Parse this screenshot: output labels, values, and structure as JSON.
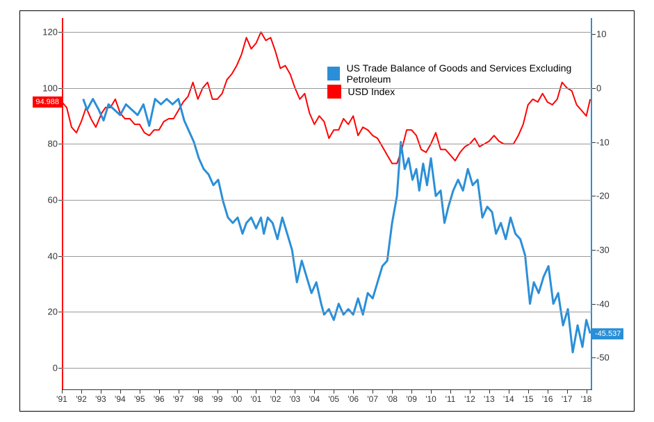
{
  "chart": {
    "type": "line",
    "background_color": "#ffffff",
    "grid_color": "#999999",
    "left_axis_color": "#ff0000",
    "right_axis_color": "#2a8fd8",
    "border_color": "#000000",
    "x": {
      "labels": [
        "'91",
        "'92",
        "'93",
        "'94",
        "'95",
        "'96",
        "'97",
        "'98",
        "'99",
        "'00",
        "'01",
        "'02",
        "'03",
        "'04",
        "'05",
        "'06",
        "'07",
        "'08",
        "'09",
        "'10",
        "'11",
        "'12",
        "'13",
        "'14",
        "'15",
        "'16",
        "'17",
        "'18"
      ],
      "min": 0,
      "max": 27.3
    },
    "y_left": {
      "min": -8,
      "max": 125,
      "ticks": [
        0,
        20,
        40,
        60,
        80,
        100,
        120
      ],
      "fontsize": 13
    },
    "y_right": {
      "min": -56,
      "max": 13,
      "ticks": [
        -50,
        -40,
        -30,
        -20,
        -10,
        0,
        10
      ],
      "fontsize": 13
    },
    "markers": {
      "left": {
        "value": 94.988,
        "label": "94.988",
        "bg": "#ff0000"
      },
      "right": {
        "value": -45.537,
        "label": "-45.537",
        "bg": "#2a8fd8"
      }
    },
    "legend": {
      "items": [
        {
          "label": "US Trade Balance of Goods and Services Excluding Petroleum",
          "color": "#2a8fd8"
        },
        {
          "label": "USD Index",
          "color": "#ff0000"
        }
      ],
      "fontsize": 14,
      "pos1": {
        "left_pct": 50,
        "top_pct": 12
      },
      "pos2": {
        "left_pct": 50,
        "top_pct": 18
      }
    },
    "series": [
      {
        "name": "usd_index",
        "axis": "left",
        "color": "#ff0000",
        "line_width": 2,
        "points": [
          [
            0,
            95
          ],
          [
            0.25,
            93
          ],
          [
            0.5,
            86
          ],
          [
            0.75,
            84
          ],
          [
            1,
            88
          ],
          [
            1.25,
            93
          ],
          [
            1.5,
            89
          ],
          [
            1.75,
            86
          ],
          [
            2.05,
            91
          ],
          [
            2.25,
            93
          ],
          [
            2.5,
            93
          ],
          [
            2.75,
            96
          ],
          [
            3,
            91
          ],
          [
            3.25,
            89
          ],
          [
            3.5,
            89
          ],
          [
            3.75,
            87
          ],
          [
            4,
            87
          ],
          [
            4.25,
            84
          ],
          [
            4.5,
            83
          ],
          [
            4.75,
            85
          ],
          [
            5,
            85
          ],
          [
            5.25,
            88
          ],
          [
            5.5,
            89
          ],
          [
            5.75,
            89
          ],
          [
            6,
            92
          ],
          [
            6.25,
            95
          ],
          [
            6.5,
            97
          ],
          [
            6.75,
            102
          ],
          [
            7,
            96
          ],
          [
            7.25,
            100
          ],
          [
            7.5,
            102
          ],
          [
            7.75,
            96
          ],
          [
            8,
            96
          ],
          [
            8.25,
            98
          ],
          [
            8.5,
            103
          ],
          [
            8.75,
            105
          ],
          [
            9,
            108
          ],
          [
            9.25,
            112
          ],
          [
            9.5,
            118
          ],
          [
            9.75,
            114
          ],
          [
            10,
            116
          ],
          [
            10.25,
            120
          ],
          [
            10.5,
            117
          ],
          [
            10.75,
            118
          ],
          [
            11,
            113
          ],
          [
            11.25,
            107
          ],
          [
            11.5,
            108
          ],
          [
            11.75,
            105
          ],
          [
            12,
            100
          ],
          [
            12.25,
            96
          ],
          [
            12.5,
            98
          ],
          [
            12.75,
            91
          ],
          [
            13,
            87
          ],
          [
            13.25,
            90
          ],
          [
            13.5,
            88
          ],
          [
            13.75,
            82
          ],
          [
            14,
            85
          ],
          [
            14.25,
            85
          ],
          [
            14.5,
            89
          ],
          [
            14.75,
            87
          ],
          [
            15,
            90
          ],
          [
            15.25,
            83
          ],
          [
            15.5,
            86
          ],
          [
            15.75,
            85
          ],
          [
            16,
            83
          ],
          [
            16.25,
            82
          ],
          [
            16.5,
            79
          ],
          [
            16.75,
            76
          ],
          [
            17,
            73
          ],
          [
            17.25,
            73
          ],
          [
            17.5,
            78
          ],
          [
            17.75,
            85
          ],
          [
            18,
            85
          ],
          [
            18.25,
            83
          ],
          [
            18.5,
            78
          ],
          [
            18.75,
            77
          ],
          [
            19,
            80
          ],
          [
            19.25,
            84
          ],
          [
            19.5,
            78
          ],
          [
            19.75,
            78
          ],
          [
            20,
            76
          ],
          [
            20.25,
            74
          ],
          [
            20.5,
            77
          ],
          [
            20.75,
            79
          ],
          [
            21,
            80
          ],
          [
            21.25,
            82
          ],
          [
            21.5,
            79
          ],
          [
            21.75,
            80
          ],
          [
            22,
            81
          ],
          [
            22.25,
            83
          ],
          [
            22.5,
            81
          ],
          [
            22.75,
            80
          ],
          [
            23,
            80
          ],
          [
            23.25,
            80
          ],
          [
            23.5,
            83
          ],
          [
            23.75,
            87
          ],
          [
            24,
            94
          ],
          [
            24.25,
            96
          ],
          [
            24.5,
            95
          ],
          [
            24.75,
            98
          ],
          [
            25,
            95
          ],
          [
            25.25,
            94
          ],
          [
            25.5,
            96
          ],
          [
            25.75,
            102
          ],
          [
            26,
            100
          ],
          [
            26.25,
            99
          ],
          [
            26.5,
            94
          ],
          [
            26.75,
            92
          ],
          [
            27,
            90
          ],
          [
            27.2,
            96
          ]
        ]
      },
      {
        "name": "trade_balance",
        "axis": "right",
        "color": "#2a8fd8",
        "line_width": 3,
        "points": [
          [
            1.1,
            -2
          ],
          [
            1.3,
            -4
          ],
          [
            1.6,
            -2
          ],
          [
            1.9,
            -4
          ],
          [
            2.15,
            -6
          ],
          [
            2.4,
            -3
          ],
          [
            2.7,
            -4
          ],
          [
            3,
            -5
          ],
          [
            3.3,
            -3
          ],
          [
            3.6,
            -4
          ],
          [
            3.9,
            -5
          ],
          [
            4.2,
            -3
          ],
          [
            4.5,
            -7
          ],
          [
            4.8,
            -2
          ],
          [
            5.1,
            -3
          ],
          [
            5.4,
            -2
          ],
          [
            5.7,
            -3
          ],
          [
            6,
            -2
          ],
          [
            6.3,
            -6
          ],
          [
            6.55,
            -8
          ],
          [
            6.8,
            -10
          ],
          [
            7.05,
            -13
          ],
          [
            7.3,
            -15
          ],
          [
            7.55,
            -16
          ],
          [
            7.8,
            -18
          ],
          [
            8.05,
            -17
          ],
          [
            8.3,
            -21
          ],
          [
            8.55,
            -24
          ],
          [
            8.8,
            -25
          ],
          [
            9.05,
            -24
          ],
          [
            9.3,
            -27
          ],
          [
            9.5,
            -25
          ],
          [
            9.75,
            -24
          ],
          [
            10,
            -26
          ],
          [
            10.25,
            -24
          ],
          [
            10.4,
            -27
          ],
          [
            10.6,
            -24
          ],
          [
            10.85,
            -25
          ],
          [
            11.1,
            -28
          ],
          [
            11.35,
            -24
          ],
          [
            11.6,
            -27
          ],
          [
            11.85,
            -30
          ],
          [
            12.1,
            -36
          ],
          [
            12.35,
            -32
          ],
          [
            12.6,
            -35
          ],
          [
            12.85,
            -38
          ],
          [
            13.1,
            -36
          ],
          [
            13.35,
            -40
          ],
          [
            13.5,
            -42
          ],
          [
            13.75,
            -41
          ],
          [
            14,
            -43
          ],
          [
            14.25,
            -40
          ],
          [
            14.5,
            -42
          ],
          [
            14.75,
            -41
          ],
          [
            15,
            -42
          ],
          [
            15.25,
            -39
          ],
          [
            15.5,
            -42
          ],
          [
            15.75,
            -38
          ],
          [
            16,
            -39
          ],
          [
            16.25,
            -36
          ],
          [
            16.5,
            -33
          ],
          [
            16.75,
            -32
          ],
          [
            17,
            -25
          ],
          [
            17.25,
            -20
          ],
          [
            17.45,
            -10
          ],
          [
            17.65,
            -15
          ],
          [
            17.85,
            -13
          ],
          [
            18.05,
            -17
          ],
          [
            18.25,
            -15
          ],
          [
            18.4,
            -19
          ],
          [
            18.6,
            -14
          ],
          [
            18.8,
            -18
          ],
          [
            19,
            -13
          ],
          [
            19.25,
            -20
          ],
          [
            19.5,
            -19
          ],
          [
            19.7,
            -25
          ],
          [
            19.9,
            -22
          ],
          [
            20.15,
            -19
          ],
          [
            20.4,
            -17
          ],
          [
            20.65,
            -19
          ],
          [
            20.9,
            -15
          ],
          [
            21.15,
            -18
          ],
          [
            21.4,
            -17
          ],
          [
            21.65,
            -24
          ],
          [
            21.9,
            -22
          ],
          [
            22.15,
            -23
          ],
          [
            22.35,
            -27
          ],
          [
            22.6,
            -25
          ],
          [
            22.85,
            -28
          ],
          [
            23.1,
            -24
          ],
          [
            23.35,
            -27
          ],
          [
            23.6,
            -28
          ],
          [
            23.85,
            -31
          ],
          [
            24.1,
            -40
          ],
          [
            24.3,
            -36
          ],
          [
            24.55,
            -38
          ],
          [
            24.8,
            -35
          ],
          [
            25.05,
            -33
          ],
          [
            25.3,
            -40
          ],
          [
            25.55,
            -38
          ],
          [
            25.8,
            -44
          ],
          [
            26.05,
            -41
          ],
          [
            26.3,
            -49
          ],
          [
            26.55,
            -44
          ],
          [
            26.8,
            -48
          ],
          [
            27,
            -43
          ],
          [
            27.2,
            -45.5
          ]
        ]
      }
    ]
  }
}
